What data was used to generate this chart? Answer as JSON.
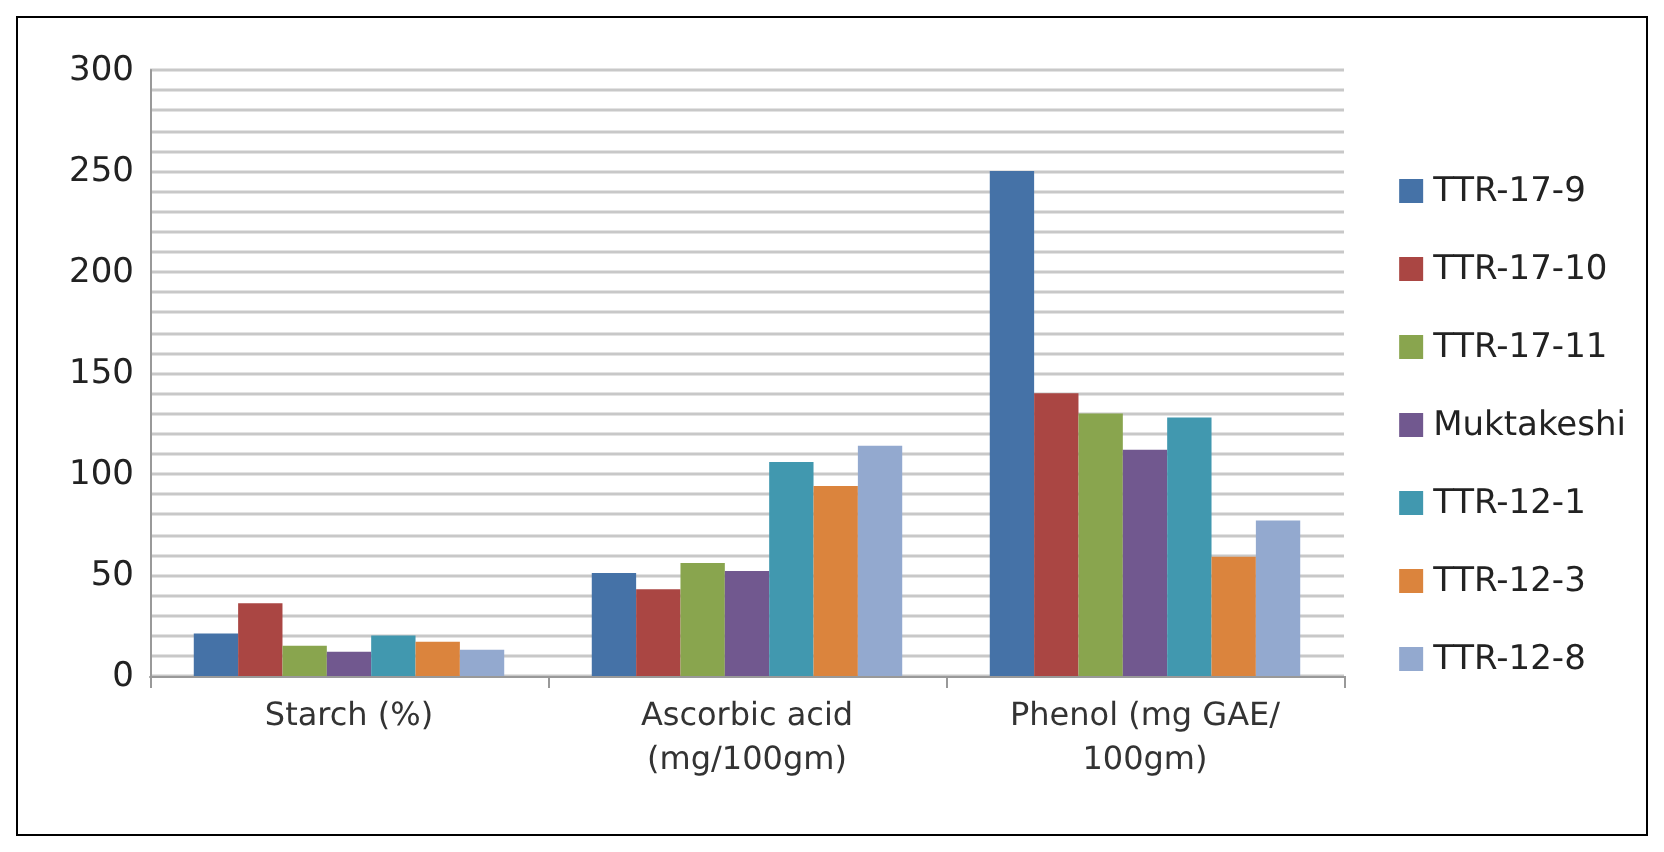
{
  "chart_data": {
    "type": "bar",
    "categories": [
      "Starch (%)",
      "Ascorbic acid\n(mg/100gm)",
      "Phenol (mg GAE/\n100gm)"
    ],
    "series": [
      {
        "name": "TTR-17-9",
        "color": "#4572a7",
        "values": [
          21,
          51,
          250
        ]
      },
      {
        "name": "TTR-17-10",
        "color": "#aa4643",
        "values": [
          36,
          43,
          140
        ]
      },
      {
        "name": "TTR-17-11",
        "color": "#89a54e",
        "values": [
          15,
          56,
          130
        ]
      },
      {
        "name": "Muktakeshi",
        "color": "#71588f",
        "values": [
          12,
          52,
          112
        ]
      },
      {
        "name": "TTR-12-1",
        "color": "#4198af",
        "values": [
          20,
          106,
          128
        ]
      },
      {
        "name": "TTR-12-3",
        "color": "#db843d",
        "values": [
          17,
          94,
          59
        ]
      },
      {
        "name": "TTR-12-8",
        "color": "#93a9cf",
        "values": [
          13,
          114,
          77
        ]
      }
    ],
    "ylim": [
      0,
      300
    ],
    "yticks": [
      0,
      {
        "value": 10,
        "label": null
      },
      {
        "value": 20,
        "label": null
      },
      {
        "value": 30,
        "label": null
      },
      {
        "value": 40,
        "label": null
      },
      50,
      {
        "value": 60,
        "label": null
      },
      {
        "value": 70,
        "label": null
      },
      {
        "value": 80,
        "label": null
      },
      {
        "value": 90,
        "label": null
      },
      100,
      {
        "value": 110,
        "label": null
      },
      {
        "value": 120,
        "label": null
      },
      {
        "value": 130,
        "label": null
      },
      {
        "value": 140,
        "label": null
      },
      150,
      {
        "value": 160,
        "label": null
      },
      {
        "value": 170,
        "label": null
      },
      {
        "value": 180,
        "label": null
      },
      {
        "value": 190,
        "label": null
      },
      200,
      {
        "value": 210,
        "label": null
      },
      {
        "value": 220,
        "label": null
      },
      {
        "value": 230,
        "label": null
      },
      {
        "value": 240,
        "label": null
      },
      250,
      {
        "value": 260,
        "label": null
      },
      {
        "value": 270,
        "label": null
      },
      {
        "value": 280,
        "label": null
      },
      {
        "value": 290,
        "label": null
      },
      300
    ],
    "grid": "y",
    "legend": "right"
  }
}
